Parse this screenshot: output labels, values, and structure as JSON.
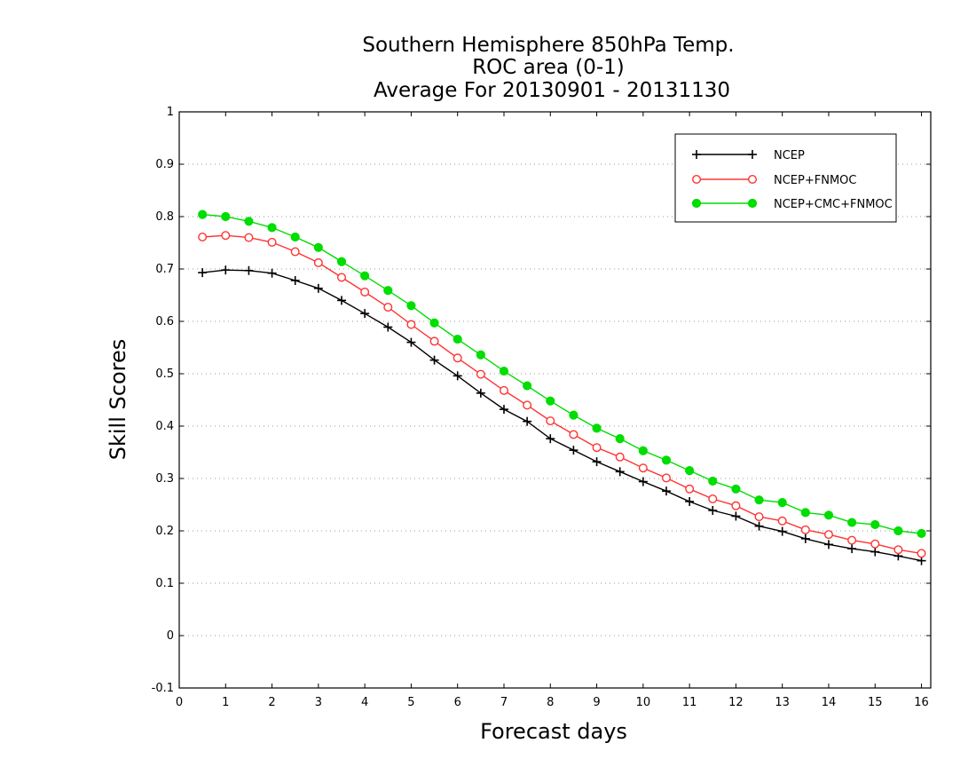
{
  "chart_data": {
    "type": "line",
    "title_lines": [
      "Southern Hemisphere 850hPa Temp.",
      "ROC area (0-1)",
      "Average For 20130901 - 20131130"
    ],
    "xlabel": "Forecast days",
    "ylabel": "Skill Scores",
    "xlim": [
      0,
      16.2
    ],
    "ylim": [
      -0.1,
      1
    ],
    "xticks": [
      0,
      1,
      2,
      3,
      4,
      5,
      6,
      7,
      8,
      9,
      10,
      11,
      12,
      13,
      14,
      15,
      16
    ],
    "xtick_labels": [
      "0",
      "1",
      "2",
      "3",
      "4",
      "5",
      "6",
      "7",
      "8",
      "9",
      "10",
      "11",
      "12",
      "13",
      "14",
      "15",
      "16"
    ],
    "yticks": [
      -0.1,
      0,
      0.1,
      0.2,
      0.3,
      0.4,
      0.5,
      0.6,
      0.7,
      0.8,
      0.9,
      1
    ],
    "ytick_labels": [
      "-0.1",
      "0",
      "0.1",
      "0.2",
      "0.3",
      "0.4",
      "0.5",
      "0.6",
      "0.7",
      "0.8",
      "0.9",
      "1"
    ],
    "grid": "horizontal dotted",
    "legend_position": "top-right",
    "x": [
      0.5,
      1,
      1.5,
      2,
      2.5,
      3,
      3.5,
      4,
      4.5,
      5,
      5.5,
      6,
      6.5,
      7,
      7.5,
      8,
      8.5,
      9,
      9.5,
      10,
      10.5,
      11,
      11.5,
      12,
      12.5,
      13,
      13.5,
      14,
      14.5,
      15,
      15.5,
      16
    ],
    "series": [
      {
        "name": "NCEP",
        "color": "#000000",
        "marker": "plus",
        "values": [
          0.693,
          0.698,
          0.697,
          0.692,
          0.678,
          0.663,
          0.64,
          0.615,
          0.589,
          0.56,
          0.526,
          0.496,
          0.463,
          0.432,
          0.409,
          0.376,
          0.354,
          0.332,
          0.313,
          0.294,
          0.276,
          0.256,
          0.239,
          0.228,
          0.209,
          0.199,
          0.185,
          0.174,
          0.166,
          0.16,
          0.152,
          0.143
        ]
      },
      {
        "name": "NCEP+FNMOC",
        "color": "#ff3333",
        "marker": "open-circle",
        "values": [
          0.761,
          0.764,
          0.76,
          0.751,
          0.733,
          0.712,
          0.684,
          0.656,
          0.627,
          0.594,
          0.562,
          0.53,
          0.499,
          0.468,
          0.44,
          0.41,
          0.384,
          0.359,
          0.341,
          0.32,
          0.301,
          0.28,
          0.261,
          0.248,
          0.227,
          0.219,
          0.202,
          0.193,
          0.182,
          0.175,
          0.164,
          0.157
        ]
      },
      {
        "name": "NCEP+CMC+FNMOC",
        "color": "#00dd00",
        "marker": "filled-circle",
        "values": [
          0.804,
          0.8,
          0.791,
          0.779,
          0.761,
          0.741,
          0.714,
          0.687,
          0.659,
          0.63,
          0.597,
          0.566,
          0.536,
          0.505,
          0.477,
          0.448,
          0.421,
          0.396,
          0.376,
          0.353,
          0.335,
          0.315,
          0.295,
          0.28,
          0.259,
          0.254,
          0.235,
          0.23,
          0.216,
          0.212,
          0.2,
          0.195
        ]
      }
    ]
  }
}
